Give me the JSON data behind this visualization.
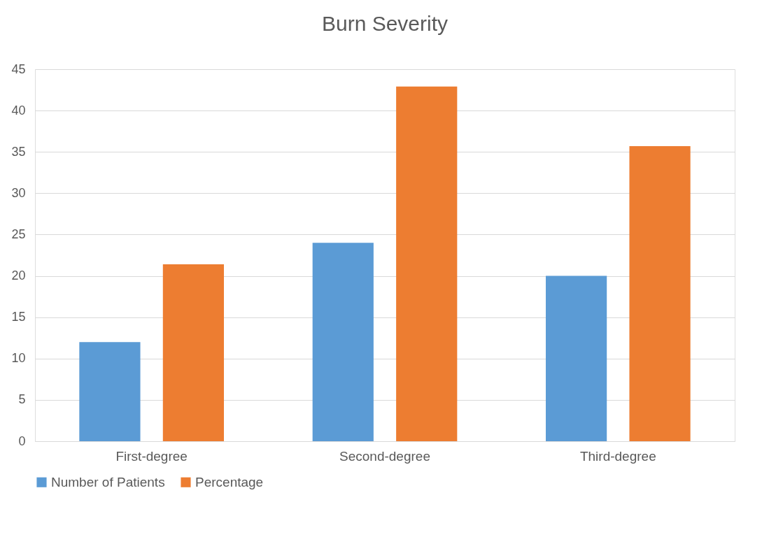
{
  "chart_data": {
    "type": "bar",
    "title": "Burn Severity",
    "categories": [
      "First-degree",
      "Second-degree",
      "Third-degree"
    ],
    "series": [
      {
        "name": "Number of Patients",
        "color": "#5b9bd5",
        "values": [
          12,
          24,
          20
        ]
      },
      {
        "name": "Percentage",
        "color": "#ed7d31",
        "values": [
          21.4,
          42.9,
          35.7
        ]
      }
    ],
    "ylim": [
      0,
      45
    ],
    "yticks": [
      0,
      5,
      10,
      15,
      20,
      25,
      30,
      35,
      40,
      45
    ],
    "grid": "y",
    "legend": "bottom"
  }
}
